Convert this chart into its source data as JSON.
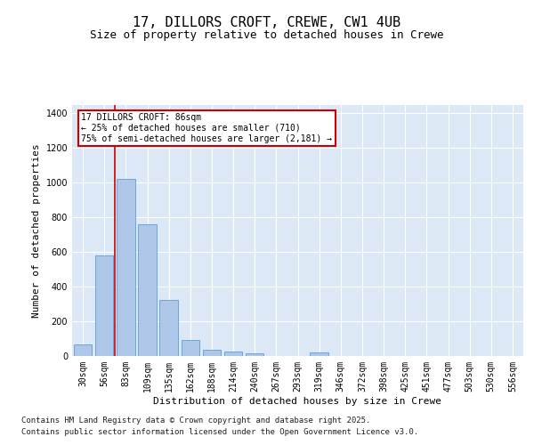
{
  "title1": "17, DILLORS CROFT, CREWE, CW1 4UB",
  "title2": "Size of property relative to detached houses in Crewe",
  "xlabel": "Distribution of detached houses by size in Crewe",
  "ylabel": "Number of detached properties",
  "categories": [
    "30sqm",
    "56sqm",
    "83sqm",
    "109sqm",
    "135sqm",
    "162sqm",
    "188sqm",
    "214sqm",
    "240sqm",
    "267sqm",
    "293sqm",
    "319sqm",
    "346sqm",
    "372sqm",
    "398sqm",
    "425sqm",
    "451sqm",
    "477sqm",
    "503sqm",
    "530sqm",
    "556sqm"
  ],
  "values": [
    65,
    580,
    1020,
    760,
    325,
    90,
    37,
    25,
    15,
    0,
    0,
    20,
    0,
    0,
    0,
    0,
    0,
    0,
    0,
    0,
    0
  ],
  "bar_color": "#aec6e8",
  "bar_edge_color": "#5a9fd4",
  "vline_color": "#cc0000",
  "vline_x": 1.5,
  "annotation_line1": "17 DILLORS CROFT: 86sqm",
  "annotation_line2": "← 25% of detached houses are smaller (710)",
  "annotation_line3": "75% of semi-detached houses are larger (2,181) →",
  "box_edge_color": "#cc0000",
  "ylim": [
    0,
    1450
  ],
  "background_color": "#dce8f5",
  "footer1": "Contains HM Land Registry data © Crown copyright and database right 2025.",
  "footer2": "Contains public sector information licensed under the Open Government Licence v3.0.",
  "title_fontsize": 11,
  "subtitle_fontsize": 9,
  "axis_label_fontsize": 8,
  "tick_fontsize": 7,
  "footer_fontsize": 6.5
}
